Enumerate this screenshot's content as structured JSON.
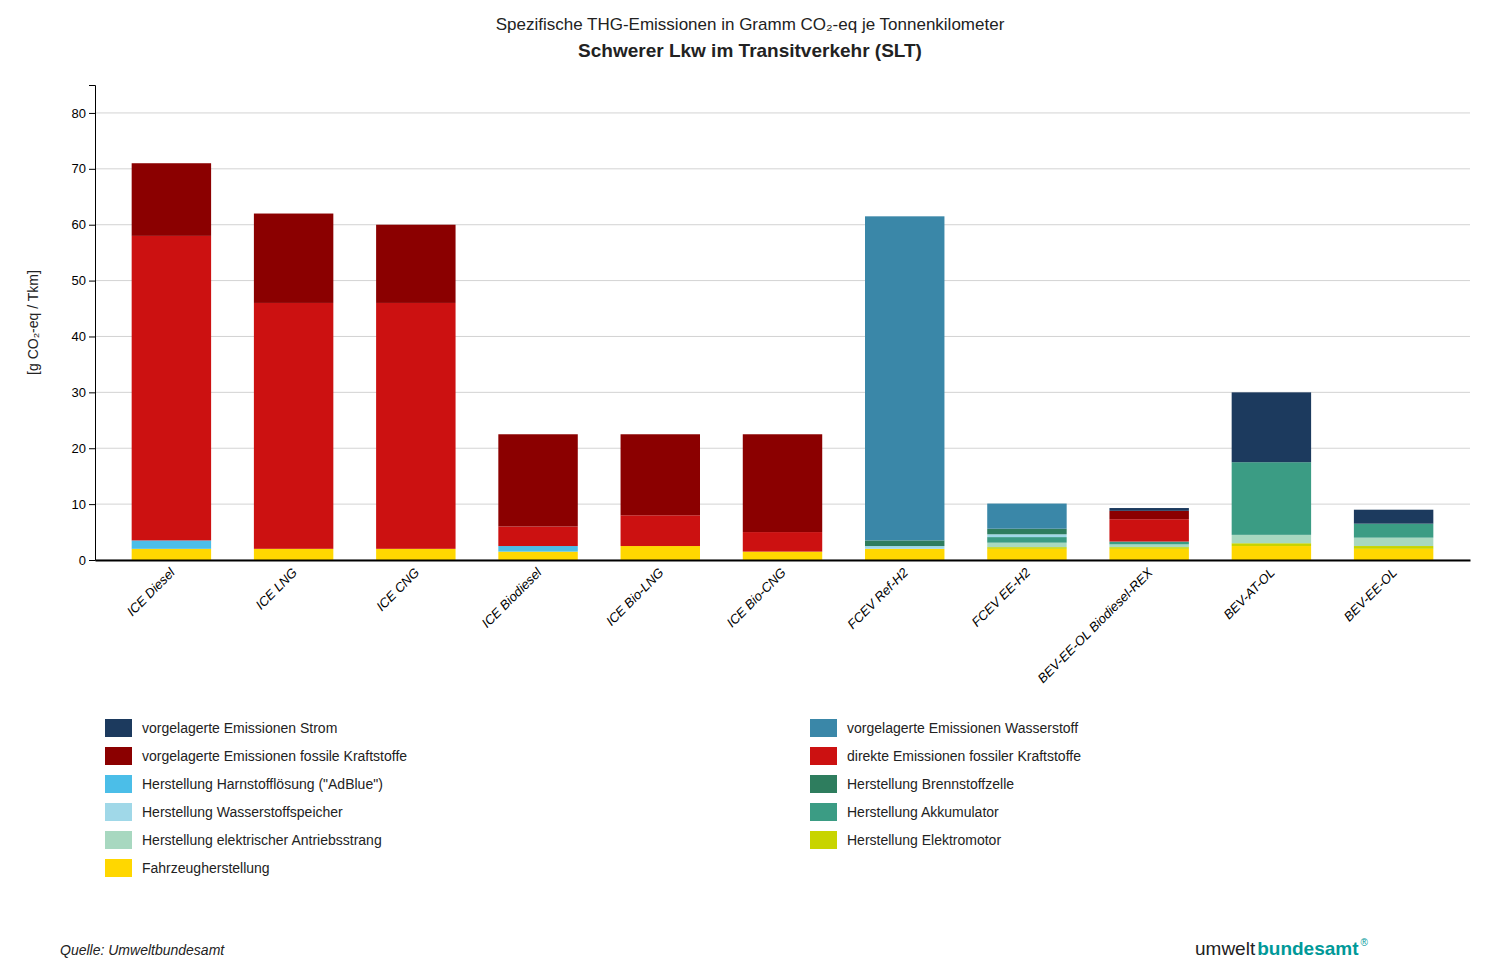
{
  "chart_data": {
    "type": "bar",
    "stacked": true,
    "grid": true,
    "legend": "bottom",
    "title": "Spezifische THG-Emissionen in Gramm CO₂-eq je Tonnenkilometer",
    "subtitle": "Schwerer Lkw im Transitverkehr (SLT)",
    "ylabel": "[g CO₂-eq / Tkm]",
    "ylim": [
      0,
      85
    ],
    "yticks": [
      0,
      10,
      20,
      30,
      40,
      50,
      60,
      70,
      80
    ],
    "categories": [
      "ICE Diesel",
      "ICE LNG",
      "ICE CNG",
      "ICE Biodiesel",
      "ICE Bio-LNG",
      "ICE Bio-CNG",
      "FCEV Ref-H2",
      "FCEV EE-H2",
      "BEV-EE-OL Biodiesel-REX",
      "BEV-AT-OL",
      "BEV-EE-OL"
    ],
    "series": [
      {
        "name": "Fahrzeugherstellung",
        "color": "#FFD700",
        "values": [
          2.0,
          2.0,
          2.0,
          1.5,
          2.5,
          1.5,
          2.0,
          2.0,
          2.0,
          2.5,
          2.0
        ]
      },
      {
        "name": "Herstellung Elektromotor",
        "color": "#C8D400",
        "values": [
          0.0,
          0.0,
          0.0,
          0.0,
          0.0,
          0.0,
          0.0,
          0.3,
          0.3,
          0.5,
          0.5
        ]
      },
      {
        "name": "Herstellung elektrischer Antriebsstrang",
        "color": "#A8D8C0",
        "values": [
          0.0,
          0.0,
          0.0,
          0.0,
          0.0,
          0.0,
          0.0,
          0.8,
          0.5,
          1.5,
          1.5
        ]
      },
      {
        "name": "Herstellung Akkumulator",
        "color": "#3B9C84",
        "values": [
          0.0,
          0.0,
          0.0,
          0.0,
          0.0,
          0.0,
          0.0,
          1.0,
          0.5,
          13.0,
          2.5
        ]
      },
      {
        "name": "Herstellung Wasserstoffspeicher",
        "color": "#A0D8E8",
        "values": [
          0.0,
          0.0,
          0.0,
          0.0,
          0.0,
          0.0,
          0.5,
          0.5,
          0.0,
          0.0,
          0.0
        ]
      },
      {
        "name": "Herstellung Brennstoffzelle",
        "color": "#2E7D5E",
        "values": [
          0.0,
          0.0,
          0.0,
          0.0,
          0.0,
          0.0,
          1.0,
          1.0,
          0.0,
          0.0,
          0.0
        ]
      },
      {
        "name": "Herstellung Harnstofflösung (\"AdBlue\")",
        "color": "#4BBEE8",
        "values": [
          1.5,
          0.0,
          0.0,
          1.0,
          0.0,
          0.0,
          0.0,
          0.0,
          0.0,
          0.0,
          0.0
        ]
      },
      {
        "name": "direkte Emissionen fossiler Kraftstoffe",
        "color": "#CC1111",
        "values": [
          54.5,
          44.0,
          44.0,
          3.5,
          5.5,
          3.5,
          0.0,
          0.0,
          4.0,
          0.0,
          0.0
        ]
      },
      {
        "name": "vorgelagerte Emissionen fossile Kraftstoffe",
        "color": "#8B0000",
        "values": [
          13.0,
          16.0,
          14.0,
          16.5,
          14.5,
          17.5,
          0.0,
          0.0,
          1.5,
          0.0,
          0.0
        ]
      },
      {
        "name": "vorgelagerte Emissionen Wasserstoff",
        "color": "#3A87A8",
        "values": [
          0.0,
          0.0,
          0.0,
          0.0,
          0.0,
          0.0,
          58.0,
          4.5,
          0.0,
          0.0,
          0.0
        ]
      },
      {
        "name": "vorgelagerte Emissionen Strom",
        "color": "#1C3A5E",
        "values": [
          0.0,
          0.0,
          0.0,
          0.0,
          0.0,
          0.0,
          0.0,
          0.0,
          0.5,
          12.5,
          2.5
        ]
      }
    ],
    "annotations": [
      {
        "text": "Quelle: Umweltbundesamt"
      },
      {
        "text": "umwelt",
        "color": "#222222"
      },
      {
        "text": "bundesamt",
        "color": "#009999"
      },
      {
        "text": "®",
        "color": "#009999"
      }
    ]
  }
}
